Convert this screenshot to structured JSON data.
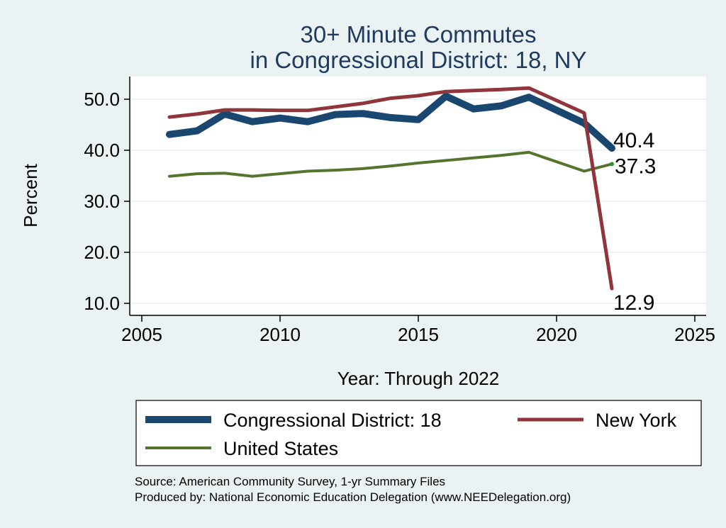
{
  "chart_data": {
    "type": "line",
    "title_line1": "30+ Minute Commutes",
    "title_line2": "in Congressional District:  18, NY",
    "xlabel": "Year: Through 2022",
    "ylabel": "Percent",
    "xlim": [
      2005,
      2025
    ],
    "ylim": [
      9,
      53.5
    ],
    "xticks": [
      2005,
      2010,
      2015,
      2020,
      2025
    ],
    "yticks": [
      10,
      20,
      30,
      40,
      50
    ],
    "ytick_labels": [
      "10.0",
      "20.0",
      "30.0",
      "40.0",
      "50.0"
    ],
    "grid": true,
    "legend_position": "bottom",
    "series": [
      {
        "name": "Congressional District:  18",
        "color": "#1a476f",
        "x": [
          2006,
          2007,
          2008,
          2009,
          2010,
          2011,
          2012,
          2013,
          2014,
          2015,
          2016,
          2017,
          2018,
          2019,
          2021,
          2022
        ],
        "values": [
          43.1,
          43.8,
          47.1,
          45.6,
          46.3,
          45.6,
          47.0,
          47.2,
          46.4,
          46.0,
          50.6,
          48.1,
          48.7,
          50.4,
          45.3,
          40.4
        ],
        "end_label": "40.4"
      },
      {
        "name": "New York",
        "color": "#90353b",
        "x": [
          2006,
          2007,
          2008,
          2009,
          2010,
          2011,
          2012,
          2013,
          2014,
          2015,
          2016,
          2017,
          2018,
          2019,
          2021,
          2022
        ],
        "values": [
          46.5,
          47.1,
          47.9,
          47.9,
          47.8,
          47.8,
          48.5,
          49.2,
          50.2,
          50.7,
          51.5,
          51.7,
          51.9,
          52.2,
          47.3,
          12.9
        ],
        "end_label": "12.9"
      },
      {
        "name": "United States",
        "color": "#55752f",
        "x": [
          2006,
          2007,
          2008,
          2009,
          2010,
          2011,
          2012,
          2013,
          2014,
          2015,
          2016,
          2017,
          2018,
          2019,
          2021,
          2022
        ],
        "values": [
          34.9,
          35.4,
          35.5,
          34.9,
          35.4,
          35.9,
          36.1,
          36.4,
          36.9,
          37.5,
          38.0,
          38.5,
          39.0,
          39.6,
          35.9,
          37.3
        ],
        "end_label": "37.3"
      }
    ]
  },
  "source_line1": "Source: American Community Survey, 1-yr Summary Files",
  "source_line2": "Produced by: National Economic Education Delegation (www.NEEDelegation.org)"
}
